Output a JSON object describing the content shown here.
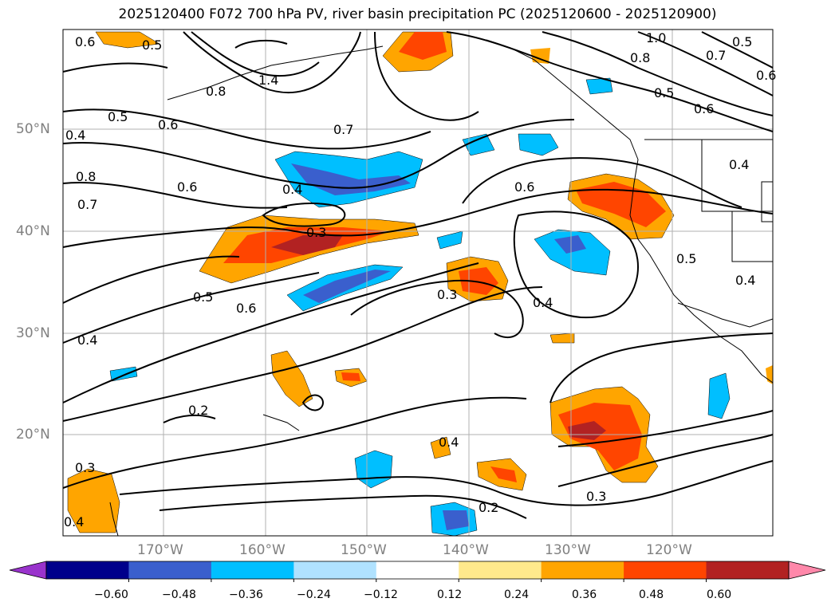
{
  "title": "2025120400 F072 700 hPa PV, river basin precipitation PC (2025120600 - 2025120900)",
  "lat_labels": [
    "50°N",
    "40°N",
    "30°N",
    "20°N"
  ],
  "lon_labels": [
    "170°W",
    "160°W",
    "150°W",
    "140°W",
    "130°W",
    "120°W"
  ],
  "colorbar": {
    "ticks": [
      "−0.60",
      "−0.48",
      "−0.36",
      "−0.24",
      "−0.12",
      "0.12",
      "0.24",
      "0.36",
      "0.48",
      "0.60"
    ],
    "colors": [
      "#9933cc",
      "#00008b",
      "#3a5fcd",
      "#00bfff",
      "#b0e2ff",
      "#ffffff",
      "#ffe98c",
      "#ffa500",
      "#ff4500",
      "#b22222",
      "#ff88aa"
    ]
  },
  "contour_labels": [
    "0.6",
    "0.5",
    "1.0",
    "0.8",
    "0.7",
    "0.5",
    "0.6",
    "1.4",
    "0.8",
    "0.5",
    "0.6",
    "0.5",
    "0.6",
    "0.7",
    "0.4",
    "0.8",
    "0.7",
    "0.6",
    "0.4",
    "0.3",
    "0.6",
    "0.4",
    "0.5",
    "0.5",
    "0.6",
    "0.3",
    "0.4",
    "0.4",
    "0.4",
    "0.2",
    "0.4",
    "0.3",
    "0.2",
    "0.3",
    "0.4"
  ]
}
